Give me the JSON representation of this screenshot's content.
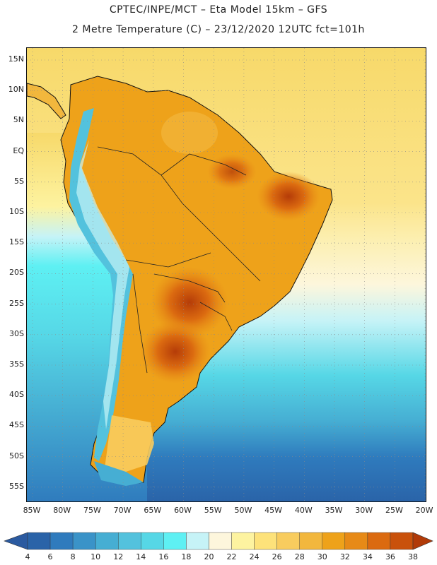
{
  "header": {
    "line1": "CPTEC/INPE/MCT –  Eta Model 15km – GFS",
    "line2": "2 Metre Temperature (C) – 23/12/2020 12UTC fct=101h"
  },
  "map": {
    "region": "South America",
    "variable": "2 Metre Temperature (C)",
    "lat_labels": [
      "15N",
      "10N",
      "5N",
      "EQ",
      "5S",
      "10S",
      "15S",
      "20S",
      "25S",
      "30S",
      "35S",
      "40S",
      "45S",
      "50S",
      "55S"
    ],
    "lon_labels": [
      "85W",
      "80W",
      "75W",
      "70W",
      "65W",
      "60W",
      "55W",
      "50W",
      "45W",
      "40W",
      "35W",
      "30W",
      "25W",
      "20W"
    ]
  },
  "colorbar": {
    "labels": [
      "4",
      "6",
      "8",
      "10",
      "12",
      "14",
      "16",
      "18",
      "20",
      "22",
      "24",
      "26",
      "28",
      "30",
      "32",
      "34",
      "36",
      "38"
    ],
    "colors": [
      "#2a63a8",
      "#2f7bbd",
      "#3a93c8",
      "#46aed3",
      "#53c2dd",
      "#56d7e6",
      "#5ef0f3",
      "#c6f3f7",
      "#fdf6dc",
      "#fdf3a0",
      "#fde27a",
      "#f8cc5e",
      "#f2b73d",
      "#eea21a",
      "#e78a17",
      "#db6a10",
      "#c9510b",
      "#b53c08"
    ],
    "under_color": "#2b5aa0",
    "over_color": "#b13a08"
  }
}
